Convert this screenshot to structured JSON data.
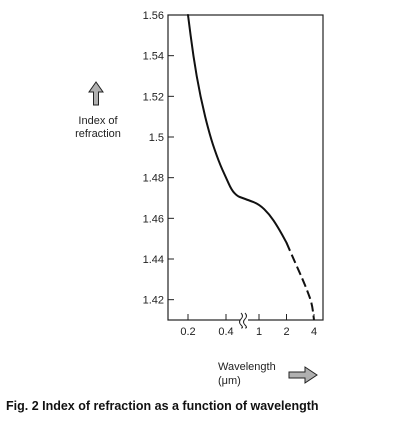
{
  "chart_data": {
    "type": "line",
    "ylabel_lines": [
      "Index of",
      "refraction"
    ],
    "xlabel_lines": [
      "Wavelength",
      "(μm)"
    ],
    "caption": "Fig. 2 Index of refraction as a function of wavelength",
    "y_ticks": [
      "1.42",
      "1.44",
      "1.46",
      "1.48",
      "1.5",
      "1.52",
      "1.54",
      "1.56"
    ],
    "x_ticks": [
      "0.2",
      "0.4",
      "1",
      "2",
      "4"
    ],
    "ylim": [
      1.41,
      1.56
    ],
    "x_scale": "log, with axis break between 0.4 and 1",
    "grid": false,
    "series": [
      {
        "x": [
          0.2,
          0.22,
          0.25,
          0.3,
          0.35,
          0.4,
          0.5,
          0.6,
          0.7,
          0.8,
          1.0,
          1.3,
          1.6,
          2.0,
          2.5,
          3.0,
          3.4,
          3.8,
          4.0
        ],
        "y": [
          1.56,
          1.54,
          1.52,
          1.5,
          1.488,
          1.48,
          1.474,
          1.471,
          1.47,
          1.469,
          1.467,
          1.462,
          1.456,
          1.448,
          1.438,
          1.43,
          1.424,
          1.418,
          1.41
        ],
        "dashed_from_x": 2.3
      }
    ],
    "colors": {
      "line": "#111111",
      "axis": "#222222",
      "arrow_fill": "#b0b0b0"
    },
    "icons": [
      "up-arrow-icon",
      "right-arrow-icon"
    ]
  }
}
